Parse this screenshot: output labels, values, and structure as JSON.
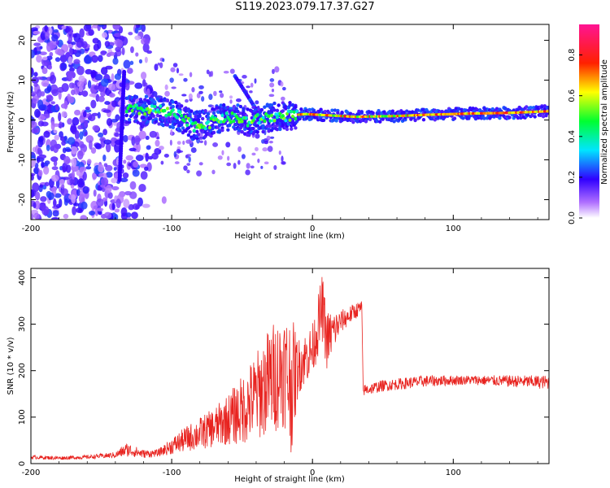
{
  "title": "S119.2023.079.17.37.G27",
  "colors": {
    "snr_line": "#e8231f",
    "spectrogram_low": "#8a2be2",
    "spectrogram_high": "#ff0000"
  },
  "chart_data": [
    {
      "type": "heatmap",
      "xlabel": "Height of straight line (km)",
      "ylabel": "Frequency (Hz)",
      "xlim": [
        -200,
        168
      ],
      "ylim": [
        -25,
        24
      ],
      "xticks": [
        "-200",
        "-100",
        "0",
        "100"
      ],
      "yticks": [
        "20",
        "10",
        "0",
        "-10",
        "-20"
      ],
      "colorbar": {
        "label": "Normalized spectral amplitude",
        "range": [
          0,
          0.95
        ],
        "ticks": [
          "0.0",
          "0.2",
          "0.4",
          "0.6",
          "0.8"
        ],
        "colormap": [
          "#ffffff",
          "#8000ff",
          "#0000ff",
          "#00ffff",
          "#00ff00",
          "#ffff00",
          "#ff0000",
          "#ff1493"
        ]
      },
      "ridge": [
        [
          -130,
          2.5
        ],
        [
          -110,
          2.5
        ],
        [
          -95,
          1
        ],
        [
          -85,
          -1.5
        ],
        [
          -75,
          -1
        ],
        [
          -65,
          0.5
        ],
        [
          -55,
          0.5
        ],
        [
          -45,
          -0.5
        ],
        [
          -35,
          0.5
        ],
        [
          -20,
          1.0
        ],
        [
          -5,
          1.5
        ],
        [
          10,
          1.2
        ],
        [
          30,
          0.8
        ],
        [
          60,
          1.0
        ],
        [
          80,
          1.3
        ],
        [
          110,
          1.6
        ],
        [
          140,
          1.8
        ],
        [
          168,
          2.2
        ]
      ],
      "description_grid": "off"
    },
    {
      "type": "line",
      "xlabel": "Height of straight line (km)",
      "ylabel": "SNR (10 * v/v)",
      "xlim": [
        -200,
        168
      ],
      "ylim": [
        0,
        420
      ],
      "xticks": [
        "-200",
        "-100",
        "0",
        "100"
      ],
      "yticks": [
        "400",
        "300",
        "200",
        "100",
        "0"
      ],
      "series": [
        {
          "envelope": [
            [
              -200,
              10,
              18
            ],
            [
              -180,
              8,
              16
            ],
            [
              -160,
              10,
              18
            ],
            [
              -140,
              12,
              25
            ],
            [
              -132,
              15,
              45
            ],
            [
              -120,
              12,
              30
            ],
            [
              -110,
              15,
              30
            ],
            [
              -100,
              20,
              55
            ],
            [
              -90,
              25,
              80
            ],
            [
              -80,
              30,
              100
            ],
            [
              -70,
              35,
              120
            ],
            [
              -60,
              40,
              150
            ],
            [
              -50,
              40,
              190
            ],
            [
              -40,
              50,
              240
            ],
            [
              -30,
              60,
              300
            ],
            [
              -20,
              80,
              330
            ],
            [
              -15,
              20,
              320
            ],
            [
              -10,
              150,
              270
            ],
            [
              0,
              190,
              300
            ],
            [
              7,
              260,
              410
            ],
            [
              10,
              200,
              330
            ],
            [
              20,
              280,
              330
            ],
            [
              30,
              310,
              345
            ],
            [
              35,
              320,
              352
            ],
            [
              36,
              145,
              170
            ],
            [
              50,
              155,
              180
            ],
            [
              80,
              165,
              190
            ],
            [
              110,
              170,
              190
            ],
            [
              140,
              165,
              190
            ],
            [
              168,
              160,
              190
            ]
          ]
        }
      ],
      "description_grid": "off"
    }
  ]
}
